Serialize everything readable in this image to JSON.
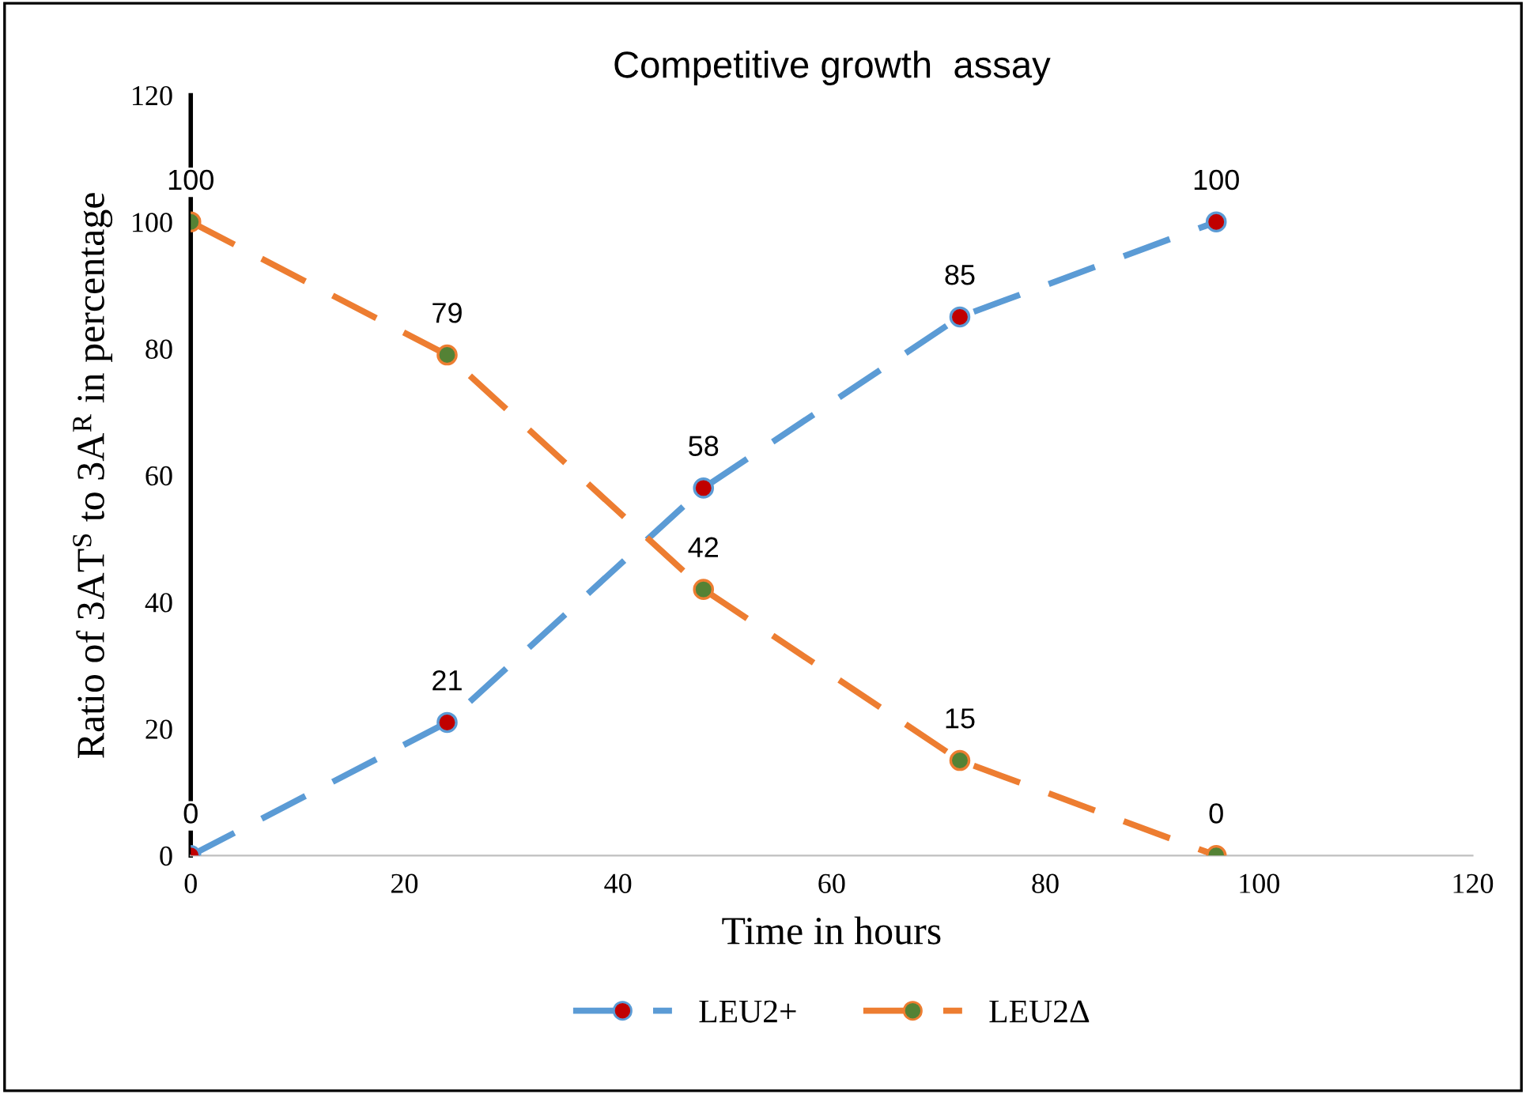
{
  "chart_data": {
    "type": "line",
    "title": "Competitive growth  assay",
    "xlabel": "Time in hours",
    "ylabel": "Ratio of 3AT$^{S}$ to 3A$^{R}$ in percentage",
    "x": [
      0,
      24,
      48,
      72,
      96
    ],
    "series": [
      {
        "name": "LEU2+",
        "color": "#5b9bd5",
        "colors": [
          "#c00000",
          "#c00000",
          "#c00000",
          "#c00000",
          "#c00000"
        ],
        "values": [
          0,
          21,
          58,
          85,
          100
        ]
      },
      {
        "name": "LEU2Δ",
        "color": "#ed7d31",
        "colors": [
          "#548235",
          "#548235",
          "#548235",
          "#548235",
          "#548235"
        ],
        "values": [
          100,
          79,
          42,
          15,
          0
        ]
      }
    ],
    "xlim": [
      0,
      120
    ],
    "xticks": [
      0,
      20,
      40,
      60,
      80,
      100,
      120
    ],
    "ylim": [
      0,
      120
    ],
    "yticks": [
      0,
      20,
      40,
      60,
      80,
      100,
      120
    ],
    "data_labels": true,
    "legend": "bottom",
    "marker": "circle",
    "line_style": "dashed",
    "grid": false
  }
}
